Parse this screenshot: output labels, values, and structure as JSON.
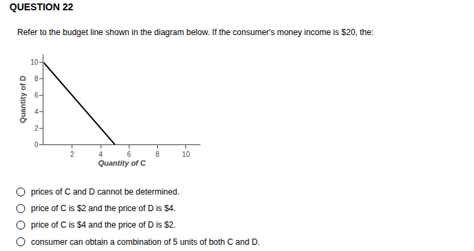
{
  "chart_data": {
    "type": "line",
    "title": "QUESTION 22",
    "subtitle": "Refer to the budget line shown in the diagram below. If the consumer's money income is $20, the:",
    "xlabel": "Quantity of C",
    "ylabel": "Quantity of D",
    "x": [
      0,
      5
    ],
    "values": [
      10,
      0
    ],
    "color": "#000000",
    "xlim": [
      0,
      11
    ],
    "ylim": [
      0,
      11
    ],
    "xticks": [
      2,
      4,
      6,
      8,
      10
    ],
    "yticks": [
      0,
      2,
      4,
      6,
      8,
      10
    ],
    "grid": false,
    "annotations": [
      "prices of C and D cannot be determined.",
      "price of C is $2 and the price of D is $4.",
      "price of C is $4 and the price of D is $2.",
      "consumer can obtain a combination of 5 units of both C and D."
    ]
  }
}
